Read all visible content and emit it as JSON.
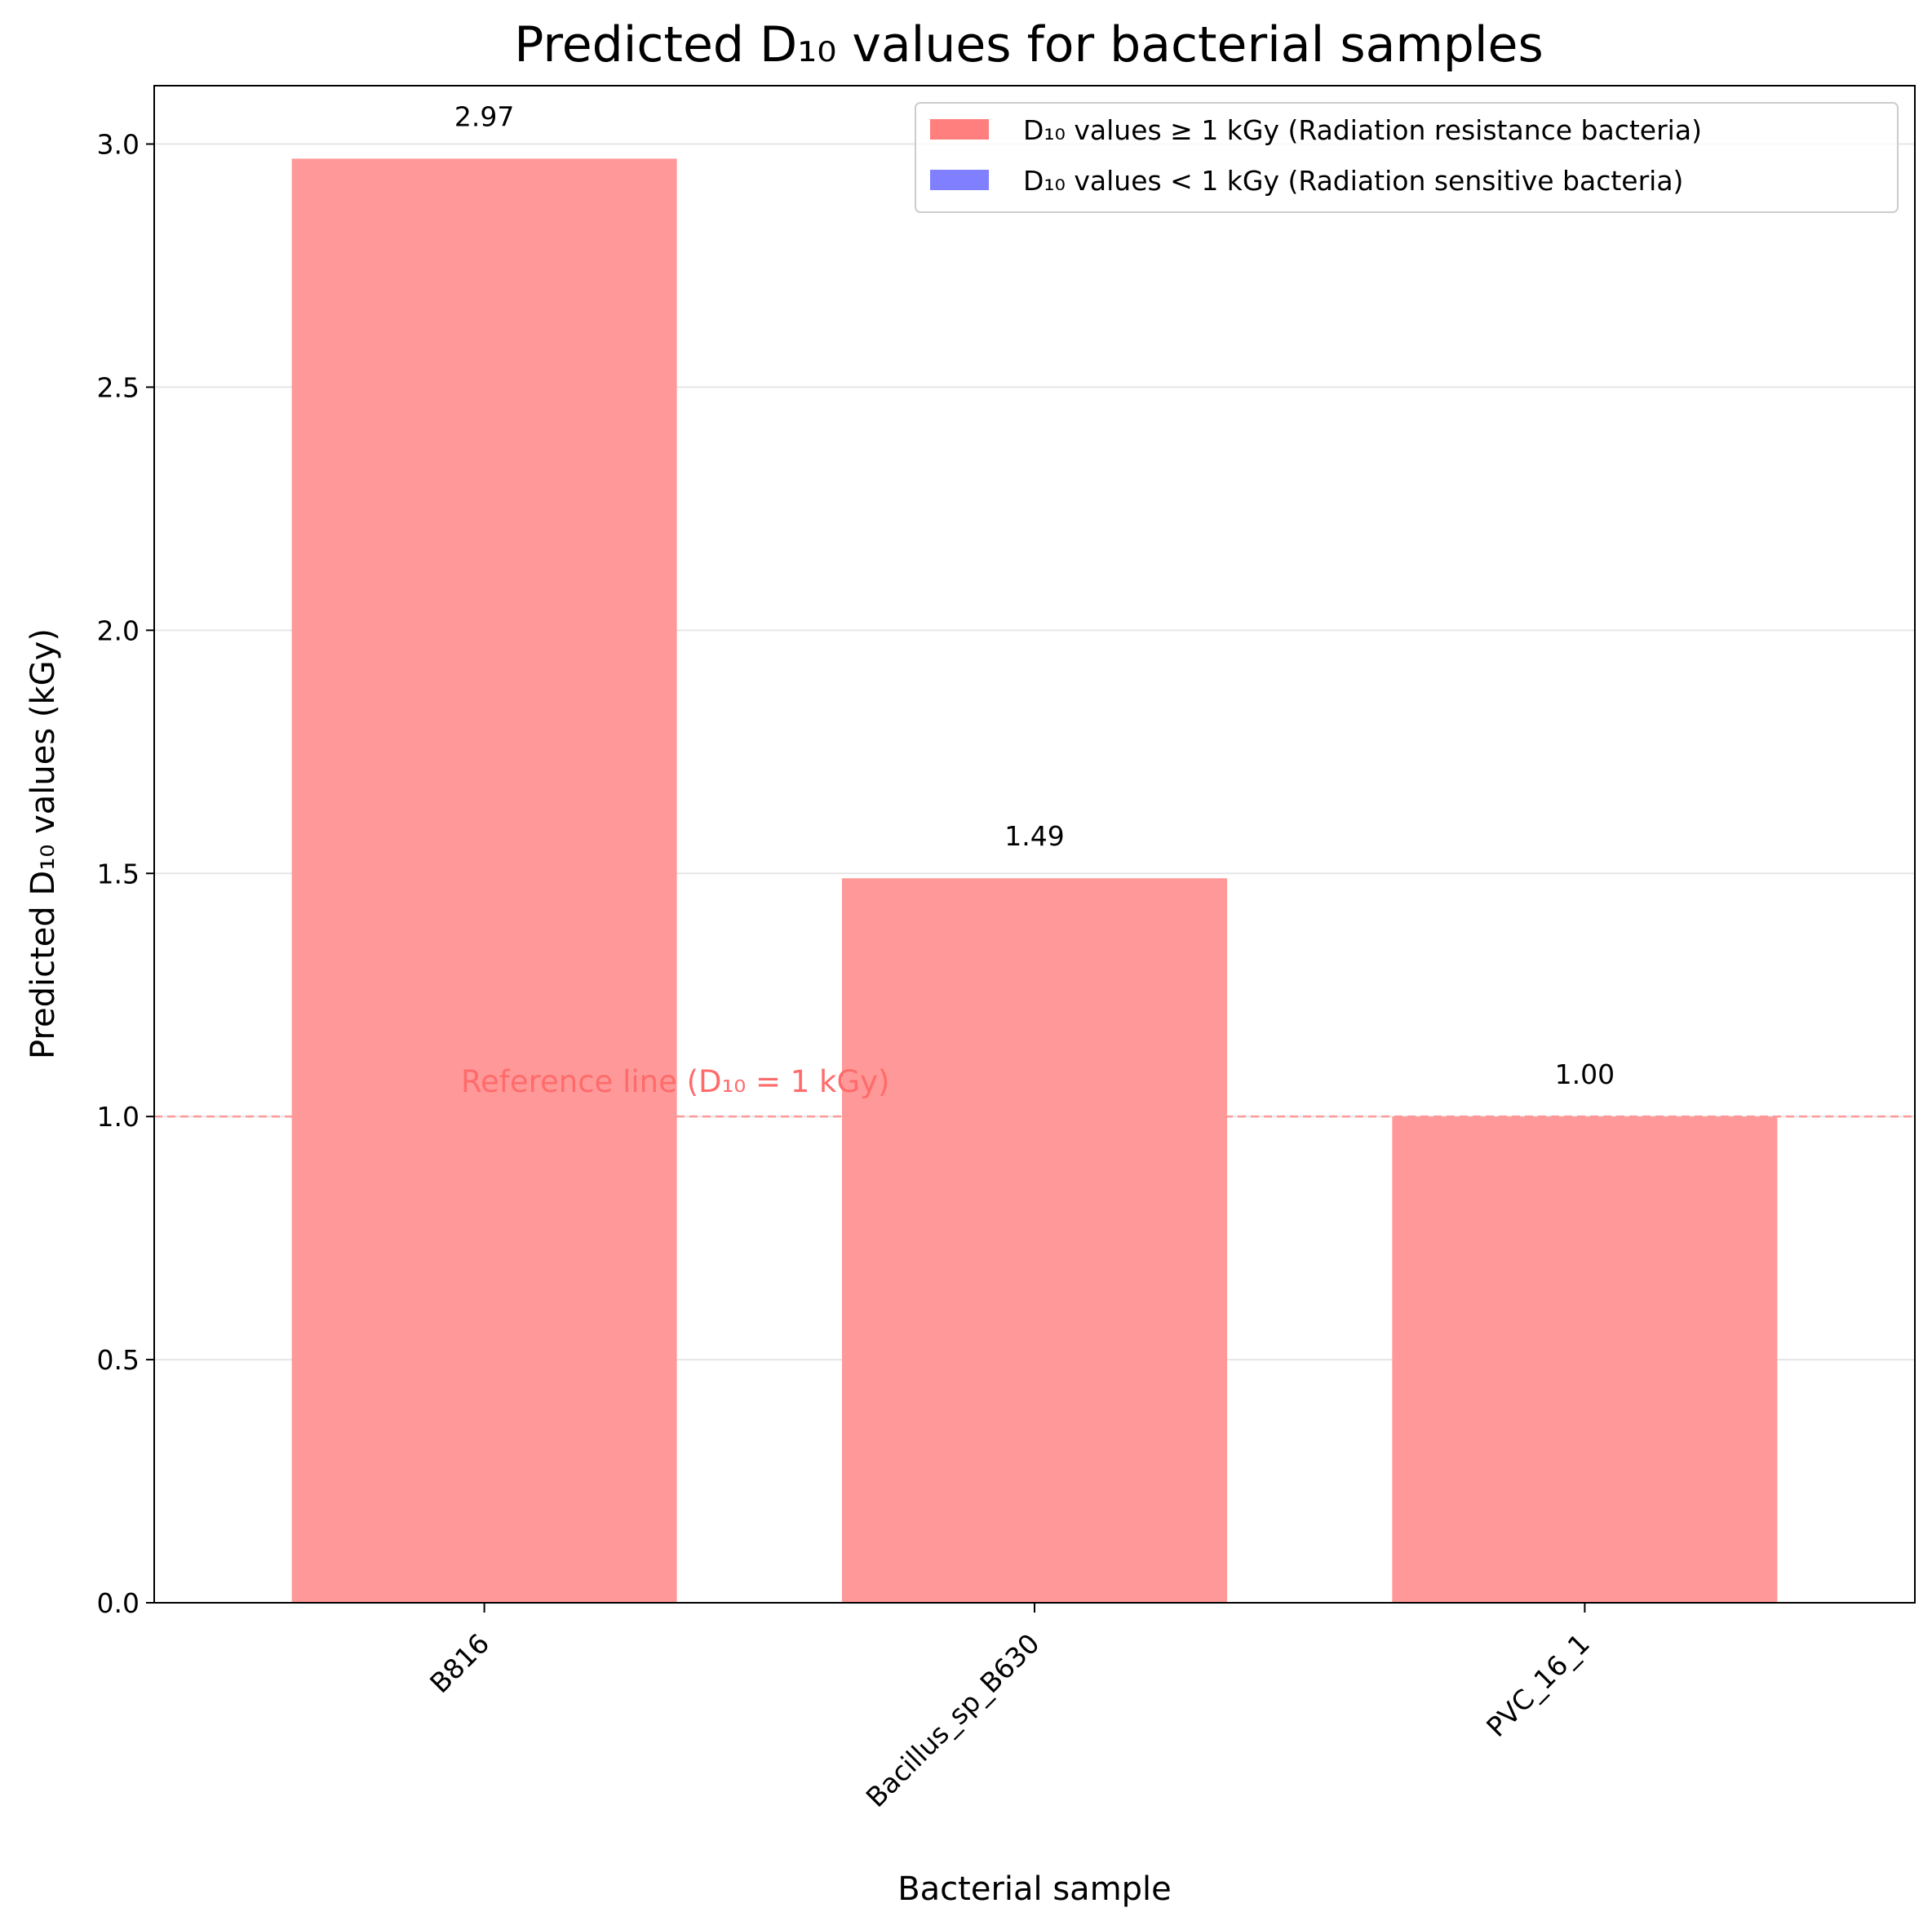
{
  "chart_data": {
    "type": "bar",
    "title": "Predicted D₁₀ values for bacterial samples",
    "xlabel": "Bacterial sample",
    "ylabel": "Predicted D₁₀ values (kGy)",
    "categories": [
      "B816",
      "Bacillus_sp_B630",
      "PVC_16_1"
    ],
    "values": [
      2.97,
      1.49,
      1.0
    ],
    "data_labels": [
      "2.97",
      "1.49",
      "1.00"
    ],
    "ylim": [
      0,
      3.12
    ],
    "yticks": [
      0.0,
      0.5,
      1.0,
      1.5,
      2.0,
      2.5,
      3.0
    ],
    "ytick_labels": [
      "0.0",
      "0.5",
      "1.0",
      "1.5",
      "2.0",
      "2.5",
      "3.0"
    ],
    "grid": "horizontal",
    "reference_line": {
      "value": 1.0,
      "label": "Reference line (D₁₀ = 1 kGy)",
      "color": "#ff9999"
    },
    "legend": {
      "placement": "top-right",
      "entries": [
        {
          "label": "D₁₀ values ≥ 1 kGy (Radiation resistance bacteria)",
          "color": "#ff7f7f"
        },
        {
          "label": "D₁₀ values < 1 kGy (Radiation sensitive bacteria)",
          "color": "#7f7fff"
        }
      ]
    },
    "bar_color": "#ff9999"
  }
}
